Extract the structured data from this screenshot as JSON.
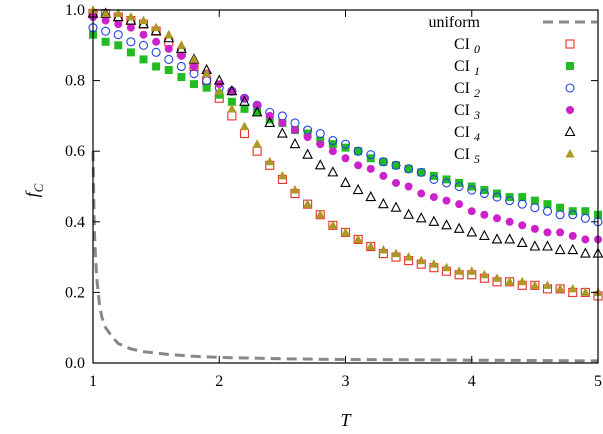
{
  "chart_data": {
    "type": "scatter",
    "xlabel": "T",
    "ylabel": "f",
    "ylabel_sub": "C",
    "xlim": [
      1,
      5
    ],
    "ylim": [
      0,
      1
    ],
    "xticks": [
      1,
      2,
      3,
      4,
      5
    ],
    "yticks": [
      0.0,
      0.2,
      0.4,
      0.6,
      0.8,
      1.0
    ],
    "xtick_labels": [
      "1",
      "2",
      "3",
      "4",
      "5"
    ],
    "ytick_labels": [
      "0.0",
      "0.2",
      "0.4",
      "0.6",
      "0.8",
      "1.0"
    ],
    "legend_position": "top-right",
    "grid": false,
    "uniform": {
      "label": "uniform",
      "color": "#888888",
      "x": [
        1.0,
        1.01,
        1.02,
        1.03,
        1.05,
        1.07,
        1.1,
        1.15,
        1.2,
        1.3,
        1.4,
        1.6,
        1.8,
        2.0,
        2.5,
        3.0,
        3.5,
        4.0,
        4.5,
        5.0
      ],
      "y": [
        0.6,
        0.38,
        0.3,
        0.24,
        0.17,
        0.13,
        0.1,
        0.075,
        0.055,
        0.04,
        0.032,
        0.024,
        0.019,
        0.016,
        0.012,
        0.01,
        0.009,
        0.008,
        0.007,
        0.006
      ]
    },
    "series_x": [
      1.0,
      1.1,
      1.2,
      1.3,
      1.4,
      1.5,
      1.6,
      1.7,
      1.8,
      1.9,
      2.0,
      2.1,
      2.2,
      2.3,
      2.4,
      2.5,
      2.6,
      2.7,
      2.8,
      2.9,
      3.0,
      3.1,
      3.2,
      3.3,
      3.4,
      3.5,
      3.6,
      3.7,
      3.8,
      3.9,
      4.0,
      4.1,
      4.2,
      4.3,
      4.4,
      4.5,
      4.6,
      4.7,
      4.8,
      4.9,
      5.0
    ],
    "series": [
      {
        "name": "CI",
        "sub": "0",
        "marker": "square-open",
        "color": "#e8302a",
        "values": [
          0.99,
          0.99,
          0.98,
          0.97,
          0.96,
          0.94,
          0.91,
          0.88,
          0.84,
          0.8,
          0.75,
          0.7,
          0.65,
          0.6,
          0.56,
          0.52,
          0.48,
          0.45,
          0.42,
          0.39,
          0.37,
          0.35,
          0.33,
          0.31,
          0.3,
          0.29,
          0.28,
          0.27,
          0.26,
          0.25,
          0.25,
          0.24,
          0.23,
          0.23,
          0.22,
          0.22,
          0.21,
          0.21,
          0.2,
          0.2,
          0.19
        ]
      },
      {
        "name": "CI",
        "sub": "1",
        "marker": "square-filled",
        "color": "#22bb22",
        "values": [
          0.93,
          0.91,
          0.9,
          0.88,
          0.86,
          0.84,
          0.83,
          0.81,
          0.79,
          0.78,
          0.76,
          0.74,
          0.72,
          0.71,
          0.69,
          0.68,
          0.66,
          0.65,
          0.63,
          0.62,
          0.61,
          0.6,
          0.58,
          0.57,
          0.56,
          0.55,
          0.54,
          0.53,
          0.52,
          0.51,
          0.5,
          0.49,
          0.48,
          0.47,
          0.47,
          0.46,
          0.45,
          0.44,
          0.43,
          0.43,
          0.42
        ]
      },
      {
        "name": "CI",
        "sub": "2",
        "marker": "circle-open",
        "color": "#2244dd",
        "values": [
          0.95,
          0.94,
          0.93,
          0.91,
          0.9,
          0.88,
          0.86,
          0.84,
          0.82,
          0.8,
          0.78,
          0.77,
          0.75,
          0.73,
          0.71,
          0.7,
          0.68,
          0.66,
          0.65,
          0.63,
          0.62,
          0.6,
          0.59,
          0.57,
          0.56,
          0.55,
          0.54,
          0.52,
          0.51,
          0.5,
          0.49,
          0.48,
          0.47,
          0.46,
          0.45,
          0.44,
          0.43,
          0.42,
          0.42,
          0.41,
          0.4
        ]
      },
      {
        "name": "CI",
        "sub": "3",
        "marker": "circle-filled",
        "color": "#cc22cc",
        "values": [
          0.98,
          0.97,
          0.96,
          0.95,
          0.93,
          0.91,
          0.89,
          0.87,
          0.84,
          0.82,
          0.79,
          0.77,
          0.75,
          0.73,
          0.7,
          0.68,
          0.66,
          0.64,
          0.62,
          0.6,
          0.58,
          0.56,
          0.55,
          0.53,
          0.51,
          0.5,
          0.48,
          0.47,
          0.46,
          0.45,
          0.43,
          0.42,
          0.41,
          0.4,
          0.39,
          0.38,
          0.37,
          0.37,
          0.36,
          0.35,
          0.35
        ]
      },
      {
        "name": "CI",
        "sub": "4",
        "marker": "triangle-open",
        "color": "#000000",
        "values": [
          0.99,
          0.99,
          0.98,
          0.97,
          0.96,
          0.94,
          0.92,
          0.89,
          0.86,
          0.83,
          0.8,
          0.77,
          0.74,
          0.71,
          0.68,
          0.65,
          0.62,
          0.59,
          0.56,
          0.54,
          0.51,
          0.49,
          0.47,
          0.45,
          0.44,
          0.42,
          0.41,
          0.4,
          0.39,
          0.38,
          0.37,
          0.36,
          0.35,
          0.35,
          0.34,
          0.33,
          0.33,
          0.32,
          0.32,
          0.31,
          0.31
        ]
      },
      {
        "name": "CI",
        "sub": "5",
        "marker": "triangle-filled",
        "color": "#aa9922",
        "values": [
          1.0,
          0.99,
          0.99,
          0.98,
          0.97,
          0.95,
          0.93,
          0.9,
          0.86,
          0.82,
          0.77,
          0.72,
          0.67,
          0.62,
          0.57,
          0.53,
          0.49,
          0.45,
          0.42,
          0.39,
          0.37,
          0.35,
          0.33,
          0.32,
          0.31,
          0.3,
          0.29,
          0.28,
          0.27,
          0.26,
          0.26,
          0.25,
          0.24,
          0.23,
          0.23,
          0.22,
          0.22,
          0.21,
          0.21,
          0.2,
          0.2
        ]
      }
    ]
  }
}
